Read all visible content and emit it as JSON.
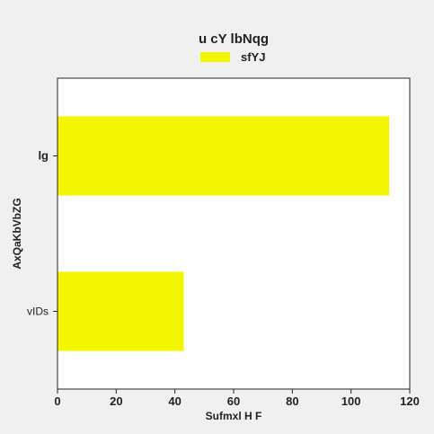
{
  "chart_data": {
    "type": "bar",
    "orientation": "horizontal",
    "title": "u cY lbNqg",
    "xlabel": "Sufmxl H F",
    "ylabel": "AxQaKbVbZG",
    "categories": [
      "lg",
      "vIDs"
    ],
    "series": [
      {
        "name": "sfYJ",
        "values": [
          113,
          43
        ],
        "color": "#f5f500"
      }
    ],
    "xlim": [
      0,
      120
    ],
    "xticks": [
      0,
      20,
      40,
      60,
      80,
      100,
      120
    ],
    "grid": false,
    "legend_position": "top-center"
  },
  "colors": {
    "background": "#f0f0f0",
    "plot_background": "#ffffff",
    "bar": "#f5f500",
    "axis": "#222222"
  }
}
